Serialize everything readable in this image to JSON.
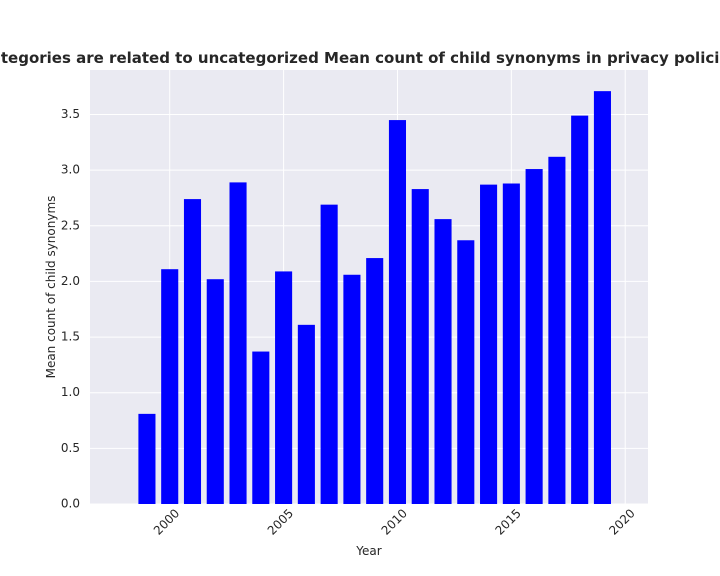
{
  "chart_data": {
    "type": "bar",
    "title": "Mean count of child synonyms in privacy policies by year when categories are related to uncategorized",
    "title_visible": "en categories are related to uncategorized Mean count of child synonyms in privacy policies by",
    "xlabel": "Year",
    "ylabel": "Mean count of child synonyms",
    "x": [
      1999,
      2000,
      2001,
      2002,
      2003,
      2004,
      2005,
      2006,
      2007,
      2008,
      2009,
      2010,
      2011,
      2012,
      2013,
      2014,
      2015,
      2016,
      2017,
      2018,
      2019
    ],
    "values": [
      0.81,
      2.11,
      2.74,
      2.02,
      2.89,
      1.37,
      2.09,
      1.61,
      2.69,
      2.06,
      2.21,
      3.45,
      2.83,
      2.56,
      2.37,
      2.87,
      2.88,
      3.01,
      3.12,
      3.49,
      3.71
    ],
    "xlim": [
      1996.5,
      2021.0
    ],
    "ylim": [
      0,
      3.9
    ],
    "xticks": [
      2000,
      2005,
      2010,
      2015,
      2020
    ],
    "xtick_labels": [
      "2000",
      "2005",
      "2010",
      "2015",
      "2020"
    ],
    "yticks": [
      0.0,
      0.5,
      1.0,
      1.5,
      2.0,
      2.5,
      3.0,
      3.5
    ],
    "ytick_labels": [
      "0.0",
      "0.5",
      "1.0",
      "1.5",
      "2.0",
      "2.5",
      "3.0",
      "3.5"
    ],
    "bar_color": "#0000ff",
    "background_color": "#eaeaf2",
    "grid": true,
    "grid_color": "#ffffff",
    "xtick_rotation_deg": 45
  }
}
